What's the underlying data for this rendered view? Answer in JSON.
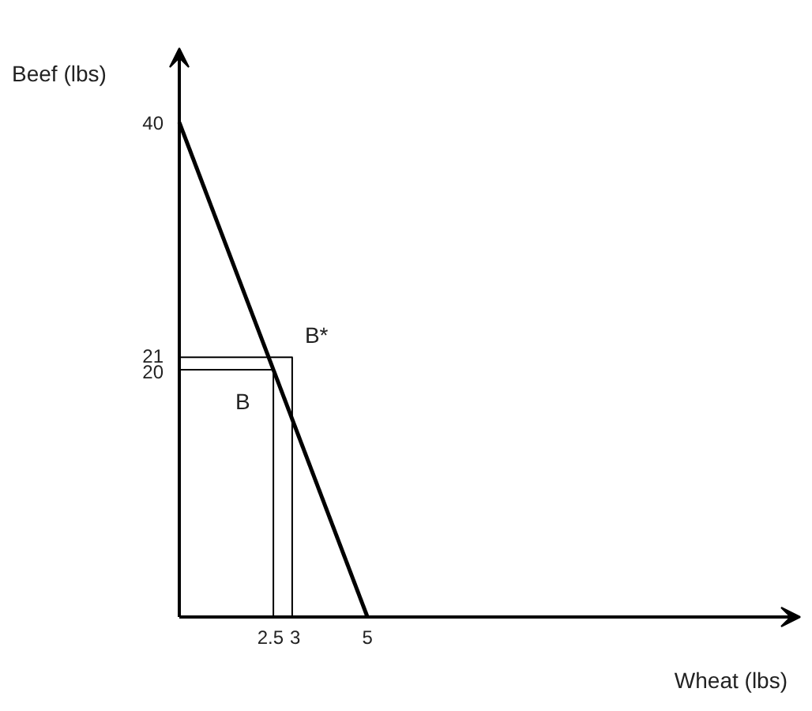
{
  "chart_data": {
    "type": "line",
    "xlabel": "Wheat (lbs)",
    "ylabel": "Beef (lbs)",
    "x": [
      0,
      5
    ],
    "series": [
      {
        "color": "#000000",
        "values": [
          40,
          0
        ]
      },
      {
        "color": "#000000",
        "x": [
          0,
          2.5,
          2.5
        ],
        "values": [
          20,
          20,
          0
        ]
      },
      {
        "color": "#000000",
        "x": [
          0,
          3,
          3
        ],
        "values": [
          21,
          21,
          0
        ]
      }
    ],
    "xlim": [
      0,
      16.5
    ],
    "ylim": [
      0,
      46
    ],
    "xticks": [
      2.5,
      3,
      5
    ],
    "yticks": [
      20,
      21,
      40
    ],
    "annotations": [
      {
        "text": "B",
        "x": 2.5,
        "y": 20
      },
      {
        "text": "B*",
        "x": 3,
        "y": 21
      }
    ],
    "grid": false,
    "marker": "none",
    "line_style": "solid"
  }
}
